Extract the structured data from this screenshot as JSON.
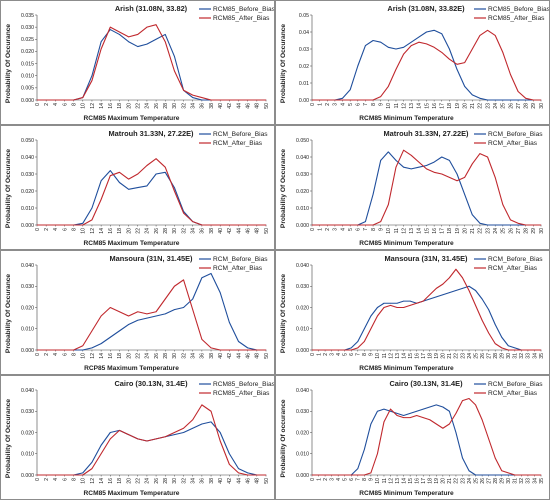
{
  "colors": {
    "before_bias": "#1f4e9c",
    "after_bias": "#c0282d"
  },
  "chart_data": [
    {
      "type": "line",
      "title": "Arish (31.08N, 33.82)",
      "xlabel": "RCM85 Maximum Temperature",
      "ylabel": "Probability Of Occurance",
      "x": [
        0,
        2,
        4,
        6,
        8,
        10,
        12,
        14,
        16,
        18,
        20,
        22,
        24,
        26,
        28,
        30,
        32,
        34,
        36,
        38,
        40,
        42,
        44,
        46,
        48,
        50
      ],
      "ylim": [
        0,
        0.035
      ],
      "yticks": [
        "0.000",
        "0.005",
        "0.010",
        "0.015",
        "0.020",
        "0.025",
        "0.030",
        "0.035"
      ],
      "legend": "top-right",
      "series": [
        {
          "name": "RCM85_Before_Bias",
          "values": [
            0,
            0,
            0,
            0,
            0,
            0.001,
            0.01,
            0.024,
            0.029,
            0.027,
            0.024,
            0.022,
            0.023,
            0.025,
            0.027,
            0.018,
            0.004,
            0.001,
            0,
            0,
            0,
            0,
            0,
            0,
            0,
            0
          ]
        },
        {
          "name": "RCM85_After_Bias",
          "values": [
            0,
            0,
            0,
            0,
            0,
            0.001,
            0.008,
            0.021,
            0.03,
            0.028,
            0.026,
            0.027,
            0.03,
            0.031,
            0.024,
            0.012,
            0.004,
            0.002,
            0.001,
            0,
            0,
            0,
            0,
            0,
            0,
            0
          ]
        }
      ]
    },
    {
      "type": "line",
      "title": "Arish (31.08N, 33.82E)",
      "xlabel": "RCM85 Minimum Temperature",
      "ylabel": "Probability Of Occurance",
      "x": [
        0,
        1,
        2,
        3,
        4,
        5,
        6,
        7,
        8,
        9,
        10,
        11,
        12,
        13,
        14,
        15,
        16,
        17,
        18,
        19,
        20,
        21,
        22,
        23,
        24,
        25,
        26,
        27,
        28,
        29,
        30
      ],
      "ylim": [
        0,
        0.05
      ],
      "yticks": [
        "0.00",
        "0.01",
        "0.02",
        "0.03",
        "0.04",
        "0.05"
      ],
      "legend": "top-right",
      "series": [
        {
          "name": "RCM85_Before_Bias",
          "values": [
            0,
            0,
            0,
            0,
            0.001,
            0.006,
            0.02,
            0.032,
            0.035,
            0.034,
            0.031,
            0.03,
            0.031,
            0.034,
            0.037,
            0.04,
            0.041,
            0.039,
            0.03,
            0.018,
            0.008,
            0.003,
            0.001,
            0,
            0,
            0,
            0,
            0,
            0,
            0,
            0
          ]
        },
        {
          "name": "RCM85_After_Bias",
          "values": [
            0,
            0,
            0,
            0,
            0,
            0,
            0,
            0,
            0,
            0.002,
            0.008,
            0.018,
            0.027,
            0.032,
            0.034,
            0.033,
            0.031,
            0.028,
            0.024,
            0.021,
            0.022,
            0.03,
            0.038,
            0.041,
            0.038,
            0.028,
            0.015,
            0.005,
            0.001,
            0,
            0
          ]
        }
      ]
    },
    {
      "type": "line",
      "title": "Matrouh 31.33N, 27.22E)",
      "xlabel": "RCM85 Maximum Temperature",
      "ylabel": "Probability Of Occurance",
      "x": [
        0,
        2,
        4,
        6,
        8,
        10,
        12,
        14,
        16,
        18,
        20,
        22,
        24,
        26,
        28,
        30,
        32,
        34,
        36,
        38,
        40,
        42,
        44,
        46,
        48,
        50
      ],
      "ylim": [
        0,
        0.05
      ],
      "yticks": [
        "0.000",
        "0.010",
        "0.020",
        "0.030",
        "0.040",
        "0.050"
      ],
      "legend": "top-right",
      "series": [
        {
          "name": "RCM_Before_Bias",
          "values": [
            0,
            0,
            0,
            0,
            0,
            0.001,
            0.01,
            0.026,
            0.032,
            0.025,
            0.021,
            0.022,
            0.023,
            0.03,
            0.031,
            0.022,
            0.008,
            0.002,
            0,
            0,
            0,
            0,
            0,
            0,
            0,
            0
          ]
        },
        {
          "name": "RCM_After_Bias",
          "values": [
            0,
            0,
            0,
            0,
            0,
            0,
            0.003,
            0.015,
            0.029,
            0.031,
            0.027,
            0.03,
            0.035,
            0.039,
            0.034,
            0.02,
            0.007,
            0.002,
            0,
            0,
            0,
            0,
            0,
            0,
            0,
            0
          ]
        }
      ]
    },
    {
      "type": "line",
      "title": "Matrouh 31.33N, 27.22E)",
      "xlabel": "RCM85 Minimum Temperature",
      "ylabel": "Probability Of Occurance",
      "x": [
        0,
        1,
        2,
        3,
        4,
        5,
        6,
        7,
        8,
        9,
        10,
        11,
        12,
        13,
        14,
        15,
        16,
        17,
        18,
        19,
        20,
        21,
        22,
        23,
        24,
        25,
        26,
        27,
        28,
        29,
        30
      ],
      "ylim": [
        0,
        0.05
      ],
      "yticks": [
        "0.000",
        "0.010",
        "0.020",
        "0.030",
        "0.040",
        "0.050"
      ],
      "legend": "top-right",
      "series": [
        {
          "name": "RCM_Before_Bias",
          "values": [
            0,
            0,
            0,
            0,
            0,
            0,
            0,
            0.002,
            0.018,
            0.038,
            0.043,
            0.038,
            0.034,
            0.033,
            0.034,
            0.035,
            0.037,
            0.04,
            0.038,
            0.03,
            0.018,
            0.006,
            0.001,
            0,
            0,
            0,
            0,
            0,
            0,
            0,
            0
          ]
        },
        {
          "name": "RCM_After_Bias",
          "values": [
            0,
            0,
            0,
            0,
            0,
            0,
            0,
            0,
            0,
            0.002,
            0.012,
            0.034,
            0.044,
            0.041,
            0.037,
            0.033,
            0.031,
            0.03,
            0.028,
            0.026,
            0.028,
            0.036,
            0.042,
            0.04,
            0.028,
            0.012,
            0.003,
            0.001,
            0,
            0,
            0
          ]
        }
      ]
    },
    {
      "type": "line",
      "title": "Mansoura (31N, 31.45E)",
      "xlabel": "RCP85 Maximum Temperature",
      "ylabel": "Probability Of Occurance",
      "x": [
        0,
        2,
        4,
        6,
        8,
        10,
        12,
        14,
        16,
        18,
        20,
        22,
        24,
        26,
        28,
        30,
        32,
        34,
        36,
        38,
        40,
        42,
        44,
        46,
        48,
        50
      ],
      "ylim": [
        0,
        0.04
      ],
      "yticks": [
        "0.000",
        "0.010",
        "0.020",
        "0.030",
        "0.040"
      ],
      "legend": "top-right",
      "series": [
        {
          "name": "RCM_Before_Bias",
          "values": [
            0,
            0,
            0,
            0,
            0,
            0,
            0.001,
            0.003,
            0.006,
            0.009,
            0.012,
            0.014,
            0.015,
            0.016,
            0.017,
            0.019,
            0.02,
            0.024,
            0.034,
            0.036,
            0.027,
            0.013,
            0.004,
            0.001,
            0,
            0
          ]
        },
        {
          "name": "RCM_After_Bias",
          "values": [
            0,
            0,
            0,
            0,
            0,
            0.002,
            0.009,
            0.016,
            0.02,
            0.018,
            0.016,
            0.018,
            0.017,
            0.018,
            0.024,
            0.03,
            0.033,
            0.019,
            0.005,
            0.001,
            0,
            0,
            0,
            0,
            0,
            0
          ]
        }
      ]
    },
    {
      "type": "line",
      "title": "Mansoura (31N, 31.45E)",
      "xlabel": "RCM85 Minimum Temperature",
      "ylabel": "Probability Of Occurance",
      "x": [
        0,
        1,
        2,
        3,
        4,
        5,
        6,
        7,
        8,
        9,
        10,
        11,
        12,
        13,
        14,
        15,
        16,
        17,
        18,
        19,
        20,
        21,
        22,
        23,
        24,
        25,
        26,
        27,
        28,
        29,
        30,
        31,
        32,
        33,
        34,
        35
      ],
      "ylim": [
        0,
        0.04
      ],
      "yticks": [
        "0.000",
        "0.010",
        "0.020",
        "0.030",
        "0.040"
      ],
      "legend": "top-right",
      "series": [
        {
          "name": "RCM_Before_Bias",
          "values": [
            0,
            0,
            0,
            0,
            0,
            0,
            0.001,
            0.004,
            0.01,
            0.016,
            0.02,
            0.022,
            0.022,
            0.022,
            0.023,
            0.023,
            0.022,
            0.023,
            0.024,
            0.025,
            0.026,
            0.027,
            0.028,
            0.029,
            0.03,
            0.028,
            0.024,
            0.019,
            0.012,
            0.006,
            0.002,
            0.001,
            0,
            0,
            0,
            0
          ]
        },
        {
          "name": "RCM_After_Bias",
          "values": [
            0,
            0,
            0,
            0,
            0,
            0,
            0,
            0.001,
            0.004,
            0.01,
            0.016,
            0.02,
            0.021,
            0.02,
            0.02,
            0.021,
            0.022,
            0.023,
            0.026,
            0.029,
            0.031,
            0.034,
            0.038,
            0.034,
            0.028,
            0.021,
            0.014,
            0.008,
            0.003,
            0.001,
            0,
            0,
            0,
            0,
            0,
            0
          ]
        }
      ]
    },
    {
      "type": "line",
      "title": "Cairo (30.13N, 31.4E)",
      "xlabel": "RCM85 Maximum Temperature",
      "ylabel": "Probability Of Occurance",
      "x": [
        0,
        2,
        4,
        6,
        8,
        10,
        12,
        14,
        16,
        18,
        20,
        22,
        24,
        26,
        28,
        30,
        32,
        34,
        36,
        38,
        40,
        42,
        44,
        46,
        48,
        50
      ],
      "ylim": [
        0,
        0.04
      ],
      "yticks": [
        "0.000",
        "0.010",
        "0.020",
        "0.030",
        "0.040"
      ],
      "legend": "top-right",
      "series": [
        {
          "name": "RCM85_Before_Bias",
          "values": [
            0,
            0,
            0,
            0,
            0,
            0.001,
            0.006,
            0.014,
            0.02,
            0.021,
            0.019,
            0.017,
            0.016,
            0.017,
            0.018,
            0.019,
            0.02,
            0.022,
            0.024,
            0.025,
            0.02,
            0.01,
            0.003,
            0.001,
            0,
            0
          ]
        },
        {
          "name": "RCM85_After_Bias",
          "values": [
            0,
            0,
            0,
            0,
            0,
            0,
            0.003,
            0.01,
            0.017,
            0.021,
            0.019,
            0.017,
            0.016,
            0.017,
            0.018,
            0.02,
            0.022,
            0.026,
            0.033,
            0.03,
            0.016,
            0.005,
            0.001,
            0,
            0,
            0
          ]
        }
      ]
    },
    {
      "type": "line",
      "title": "Cairo (30.13N, 31.4E)",
      "xlabel": "RCM85 Minimum Temperature",
      "ylabel": "Probability Of occurance",
      "x": [
        0,
        1,
        2,
        3,
        4,
        5,
        6,
        7,
        8,
        9,
        10,
        11,
        12,
        13,
        14,
        15,
        16,
        17,
        18,
        19,
        20,
        21,
        22,
        23,
        24,
        25,
        26,
        27,
        28,
        29,
        30,
        31,
        32,
        33,
        34,
        35
      ],
      "ylim": [
        0,
        0.04
      ],
      "yticks": [
        "0.000",
        "0.010",
        "0.020",
        "0.030",
        "0.040"
      ],
      "legend": "top-right",
      "series": [
        {
          "name": "RCM_Before_Bias",
          "values": [
            0,
            0,
            0,
            0,
            0,
            0,
            0,
            0.003,
            0.012,
            0.024,
            0.03,
            0.031,
            0.03,
            0.029,
            0.028,
            0.029,
            0.03,
            0.031,
            0.032,
            0.033,
            0.032,
            0.03,
            0.02,
            0.008,
            0.002,
            0,
            0,
            0,
            0,
            0,
            0,
            0,
            0,
            0,
            0,
            0
          ]
        },
        {
          "name": "RCM_After_Bias",
          "values": [
            0,
            0,
            0,
            0,
            0,
            0,
            0,
            0,
            0,
            0.001,
            0.01,
            0.025,
            0.031,
            0.028,
            0.027,
            0.027,
            0.028,
            0.027,
            0.026,
            0.024,
            0.022,
            0.024,
            0.029,
            0.035,
            0.036,
            0.033,
            0.026,
            0.017,
            0.008,
            0.002,
            0.001,
            0,
            0,
            0,
            0,
            0
          ]
        }
      ]
    }
  ]
}
